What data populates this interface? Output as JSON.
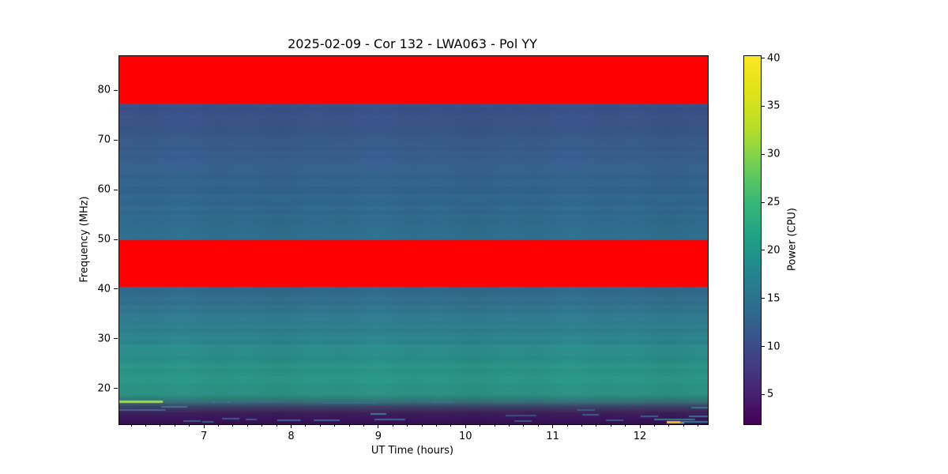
{
  "figure": {
    "title": "2025-02-09 - Cor 132 - LWA063 - Pol YY",
    "background": "#ffffff"
  },
  "chart_data": {
    "type": "heatmap",
    "title": "2025-02-09 - Cor 132 - LWA063 - Pol YY",
    "xlabel": "UT Time (hours)",
    "ylabel": "Frequency (MHz)",
    "x_range": [
      6.02,
      12.77
    ],
    "y_range": [
      13,
      87
    ],
    "x_ticks": [
      7,
      8,
      9,
      10,
      11,
      12
    ],
    "x_minor_step_hours": 0.166667,
    "y_ticks": [
      20,
      30,
      40,
      50,
      60,
      70,
      80
    ],
    "grid": false,
    "colormap": "viridis",
    "colorbar": {
      "label": "Power (CPU)",
      "ticks": [
        5,
        10,
        15,
        20,
        25,
        30,
        35,
        40
      ],
      "range": [
        2,
        40.3
      ],
      "position": "right",
      "stops": [
        {
          "frac": 0.0,
          "color": "#440154"
        },
        {
          "frac": 0.1,
          "color": "#482878"
        },
        {
          "frac": 0.2,
          "color": "#3e4989"
        },
        {
          "frac": 0.3,
          "color": "#31688e"
        },
        {
          "frac": 0.4,
          "color": "#26828e"
        },
        {
          "frac": 0.5,
          "color": "#1f9e89"
        },
        {
          "frac": 0.6,
          "color": "#35b779"
        },
        {
          "frac": 0.7,
          "color": "#6ece58"
        },
        {
          "frac": 0.8,
          "color": "#b5de2b"
        },
        {
          "frac": 0.9,
          "color": "#dfe318"
        },
        {
          "frac": 1.0,
          "color": "#fde725"
        }
      ]
    },
    "masked_bands_mhz": [
      {
        "f_min": 77.5,
        "f_max": 87.0
      },
      {
        "f_min": 40.65,
        "f_max": 50.0
      }
    ],
    "masked_color": "#fe0000",
    "background_profile": [
      {
        "f": 77.5,
        "color": "#3b4f86"
      },
      {
        "f": 70.0,
        "color": "#38598b"
      },
      {
        "f": 62.0,
        "color": "#33628d"
      },
      {
        "f": 55.0,
        "color": "#306a8d"
      },
      {
        "f": 50.0,
        "color": "#2e708d"
      },
      {
        "f": 40.65,
        "color": "#33688c"
      },
      {
        "f": 37.0,
        "color": "#31718d"
      },
      {
        "f": 34.0,
        "color": "#2f7a8d"
      },
      {
        "f": 31.0,
        "color": "#2d828c"
      },
      {
        "f": 28.0,
        "color": "#2b8b8a"
      },
      {
        "f": 25.0,
        "color": "#2a9287"
      },
      {
        "f": 22.5,
        "color": "#299384"
      },
      {
        "f": 20.5,
        "color": "#2a9082"
      },
      {
        "f": 19.0,
        "color": "#2b8c7f"
      },
      {
        "f": 18.2,
        "color": "#2e827b"
      },
      {
        "f": 17.4,
        "color": "#356a75"
      },
      {
        "f": 16.8,
        "color": "#3a4f6b"
      },
      {
        "f": 16.2,
        "color": "#3d3763"
      },
      {
        "f": 15.5,
        "color": "#3d255d"
      },
      {
        "f": 14.5,
        "color": "#3a1758"
      },
      {
        "f": 13.0,
        "color": "#330d51"
      }
    ],
    "rfi_streaks": [
      {
        "t0": 6.02,
        "t1": 6.52,
        "f": 17.55,
        "h": 3,
        "color": "#a7d938"
      },
      {
        "t0": 6.5,
        "t1": 6.8,
        "f": 16.55,
        "h": 2,
        "color": "#44708f"
      },
      {
        "t0": 6.02,
        "t1": 6.55,
        "f": 15.85,
        "h": 2,
        "color": "#40688f"
      },
      {
        "t0": 6.75,
        "t1": 6.95,
        "f": 13.6,
        "h": 2,
        "color": "#3c5c87"
      },
      {
        "t0": 6.97,
        "t1": 7.1,
        "f": 13.55,
        "h": 2,
        "color": "#3c5c87"
      },
      {
        "t0": 7.08,
        "t1": 7.3,
        "f": 17.5,
        "h": 2,
        "color": "#38708f"
      },
      {
        "t0": 7.5,
        "t1": 7.9,
        "f": 17.55,
        "h": 2,
        "color": "#38708f"
      },
      {
        "t0": 8.35,
        "t1": 8.95,
        "f": 17.35,
        "h": 2,
        "color": "#3a6d8f"
      },
      {
        "t0": 7.2,
        "t1": 7.4,
        "f": 14.15,
        "h": 2,
        "color": "#3d5a85"
      },
      {
        "t0": 7.47,
        "t1": 7.6,
        "f": 13.9,
        "h": 2,
        "color": "#3d5a85"
      },
      {
        "t0": 7.83,
        "t1": 8.1,
        "f": 13.8,
        "h": 2,
        "color": "#3f6090"
      },
      {
        "t0": 8.25,
        "t1": 8.55,
        "f": 13.75,
        "h": 2,
        "color": "#3f6090"
      },
      {
        "t0": 8.9,
        "t1": 9.08,
        "f": 15.1,
        "h": 2,
        "color": "#3f7d92"
      },
      {
        "t0": 8.95,
        "t1": 9.3,
        "f": 13.9,
        "h": 2,
        "color": "#41638f"
      },
      {
        "t0": 9.6,
        "t1": 9.85,
        "f": 17.4,
        "h": 2,
        "color": "#38708f"
      },
      {
        "t0": 10.45,
        "t1": 10.8,
        "f": 14.8,
        "h": 2,
        "color": "#3a4f7a"
      },
      {
        "t0": 10.55,
        "t1": 10.75,
        "f": 13.7,
        "h": 2,
        "color": "#3c5580"
      },
      {
        "t0": 11.27,
        "t1": 11.48,
        "f": 15.9,
        "h": 2,
        "color": "#3d5a85"
      },
      {
        "t0": 11.33,
        "t1": 11.52,
        "f": 14.9,
        "h": 2,
        "color": "#3d5a85"
      },
      {
        "t0": 11.6,
        "t1": 11.8,
        "f": 13.8,
        "h": 2,
        "color": "#3c5580"
      },
      {
        "t0": 12.0,
        "t1": 12.2,
        "f": 14.6,
        "h": 2,
        "color": "#3d5f8a"
      },
      {
        "t0": 12.15,
        "t1": 12.62,
        "f": 13.95,
        "h": 2,
        "color": "#2e7d8c"
      },
      {
        "t0": 12.3,
        "t1": 12.5,
        "f": 13.55,
        "h": 3,
        "color": "#eec137"
      },
      {
        "t0": 12.45,
        "t1": 12.77,
        "f": 13.5,
        "h": 2,
        "color": "#31808e"
      },
      {
        "t0": 12.55,
        "t1": 12.77,
        "f": 14.55,
        "h": 2,
        "color": "#3f6b94"
      },
      {
        "t0": 12.58,
        "t1": 12.77,
        "f": 16.35,
        "h": 2,
        "color": "#44708f"
      }
    ]
  }
}
